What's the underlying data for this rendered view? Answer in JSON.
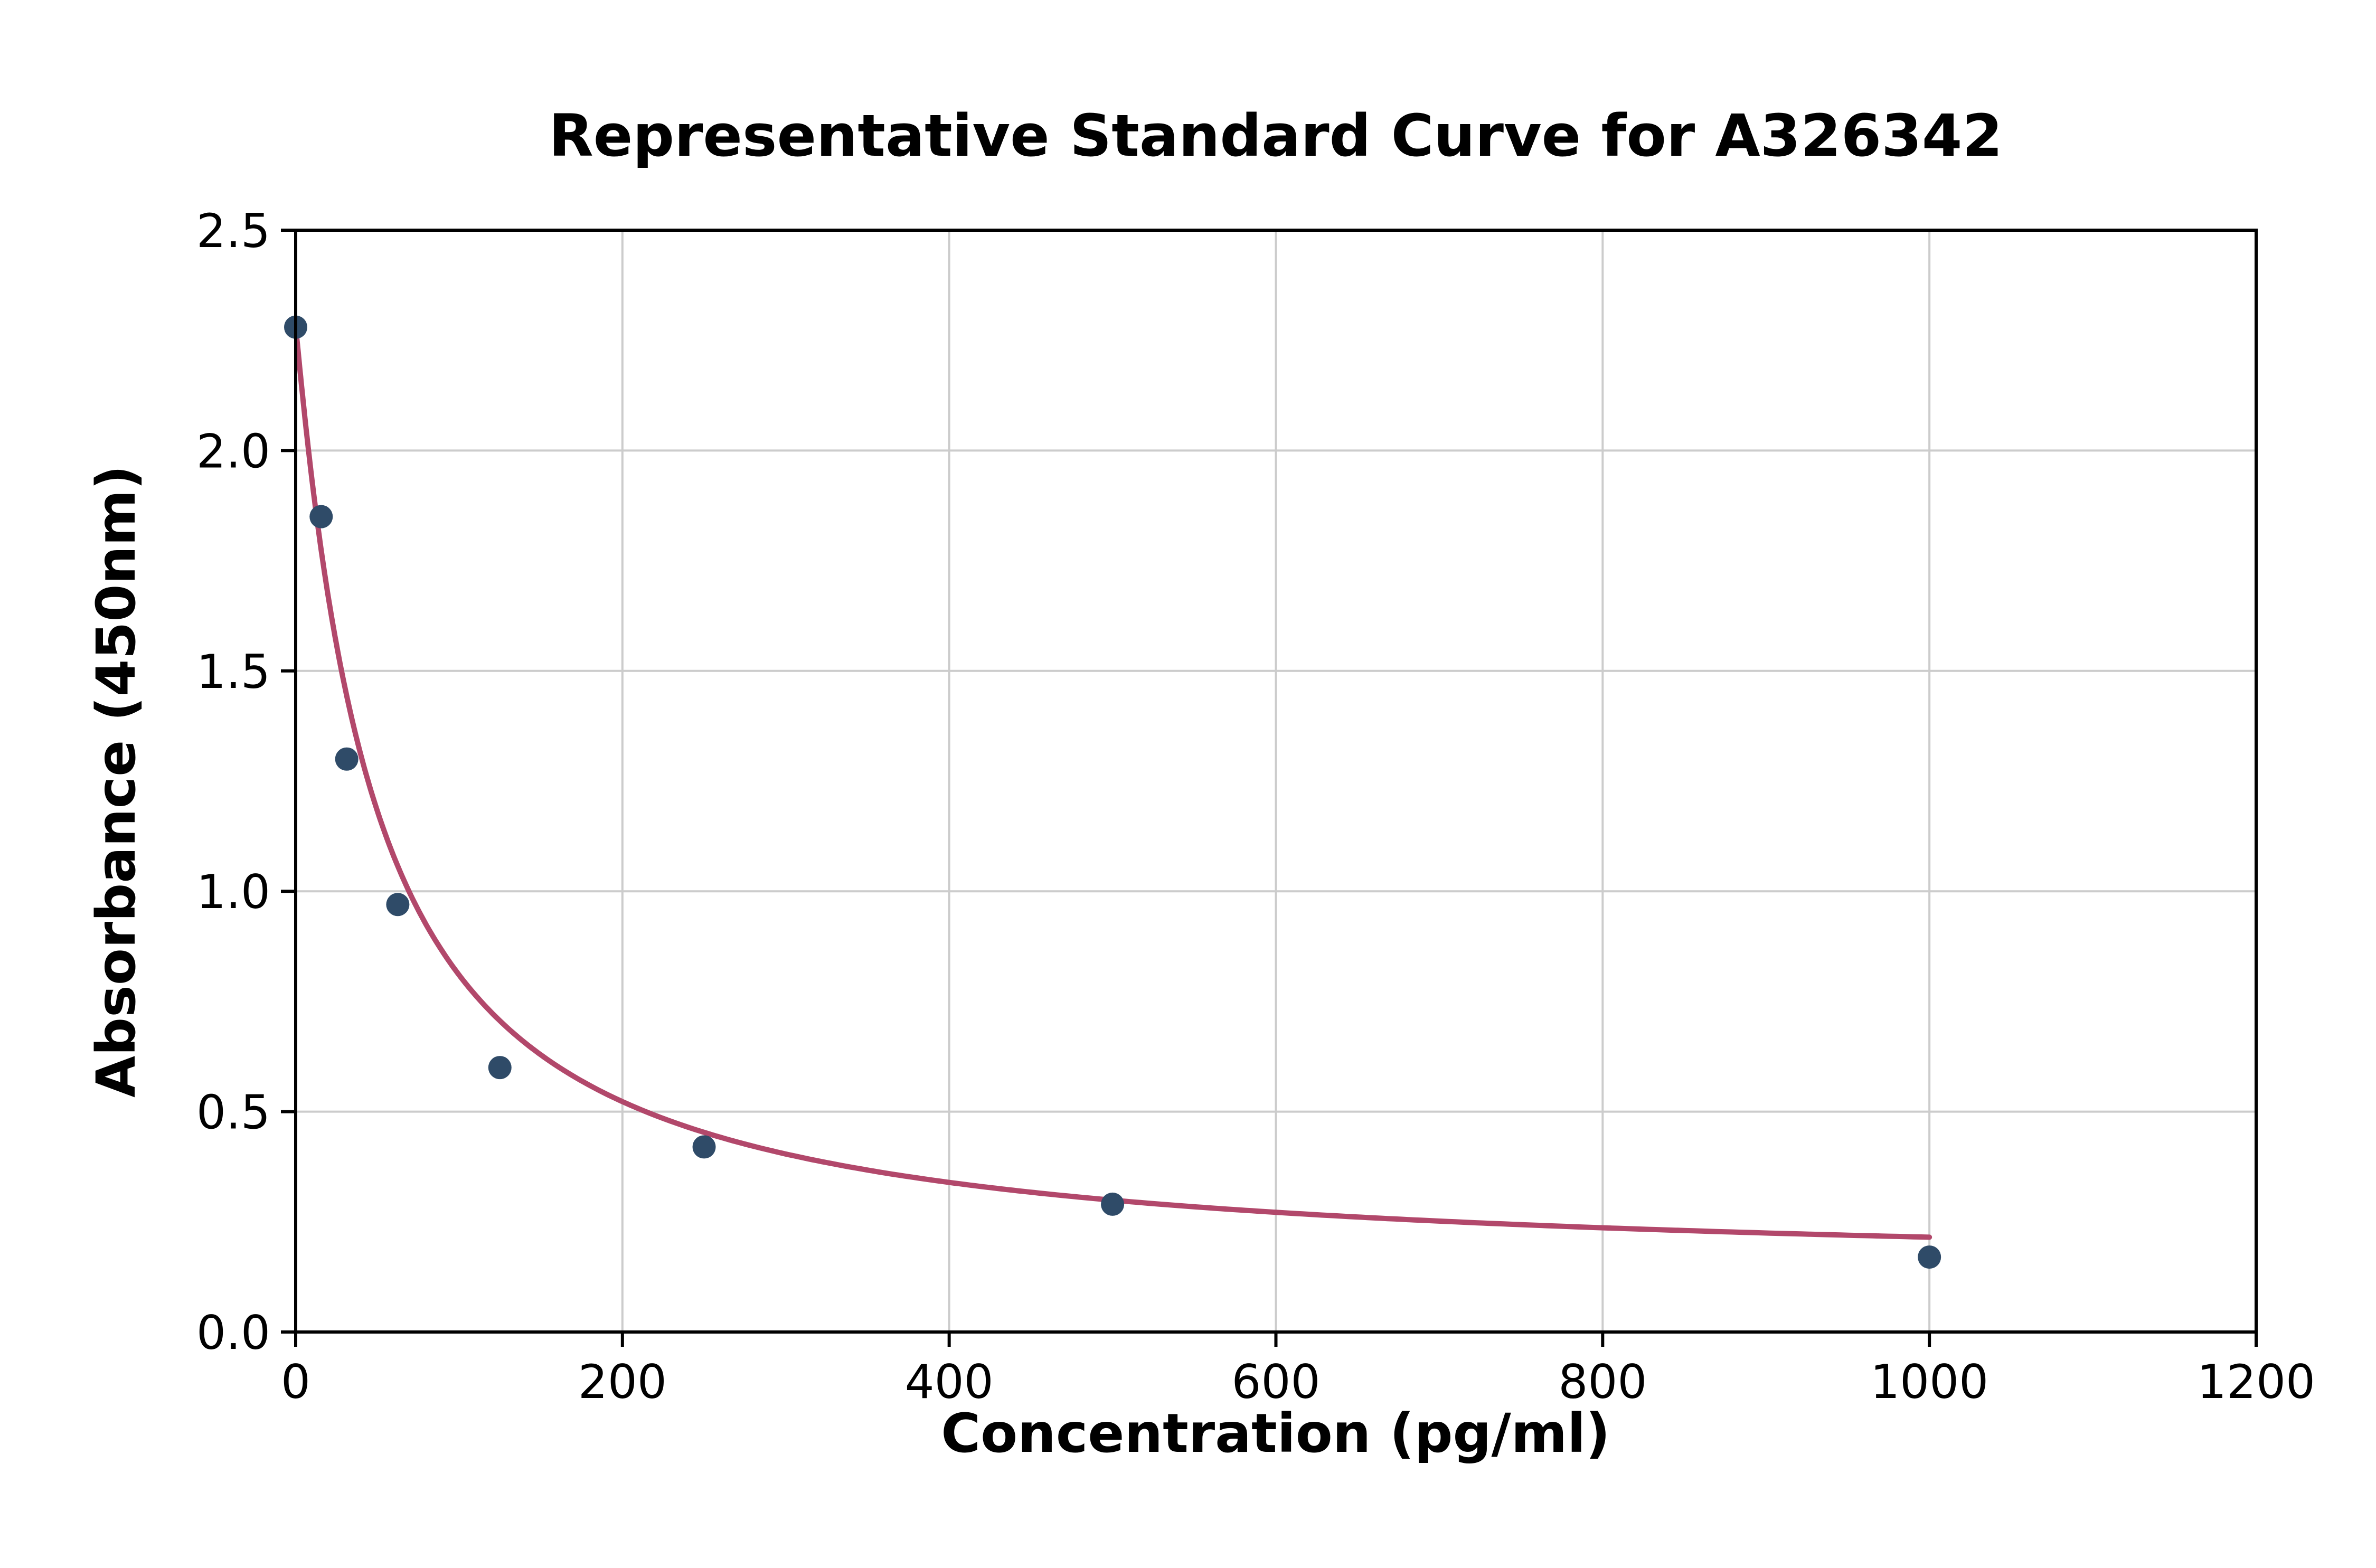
{
  "chart_data": {
    "type": "scatter",
    "title": "Representative Standard Curve for A326342",
    "xlabel": "Concentration (pg/ml)",
    "ylabel": "Absorbance (450nm)",
    "xlim": [
      0,
      1200
    ],
    "ylim": [
      0.0,
      2.5
    ],
    "x_ticks": [
      0,
      200,
      400,
      600,
      800,
      1000,
      1200
    ],
    "y_ticks": [
      0.0,
      0.5,
      1.0,
      1.5,
      2.0,
      2.5
    ],
    "grid": true,
    "legend": "none",
    "points": [
      {
        "x": 0,
        "y": 2.28
      },
      {
        "x": 15.6,
        "y": 1.85
      },
      {
        "x": 31.25,
        "y": 1.3
      },
      {
        "x": 62.5,
        "y": 0.97
      },
      {
        "x": 125,
        "y": 0.6
      },
      {
        "x": 250,
        "y": 0.42
      },
      {
        "x": 500,
        "y": 0.29
      },
      {
        "x": 1000,
        "y": 0.17
      }
    ],
    "fit_curve": {
      "type": "4PL",
      "a": 2.28,
      "b": 1.05,
      "c": 48,
      "d": 0.13,
      "x_range": [
        0,
        1000
      ]
    },
    "colors": {
      "points": "#2f4b68",
      "curve": "#b2486b",
      "grid": "#cccccc",
      "axis": "#000000",
      "background": "#ffffff"
    }
  }
}
